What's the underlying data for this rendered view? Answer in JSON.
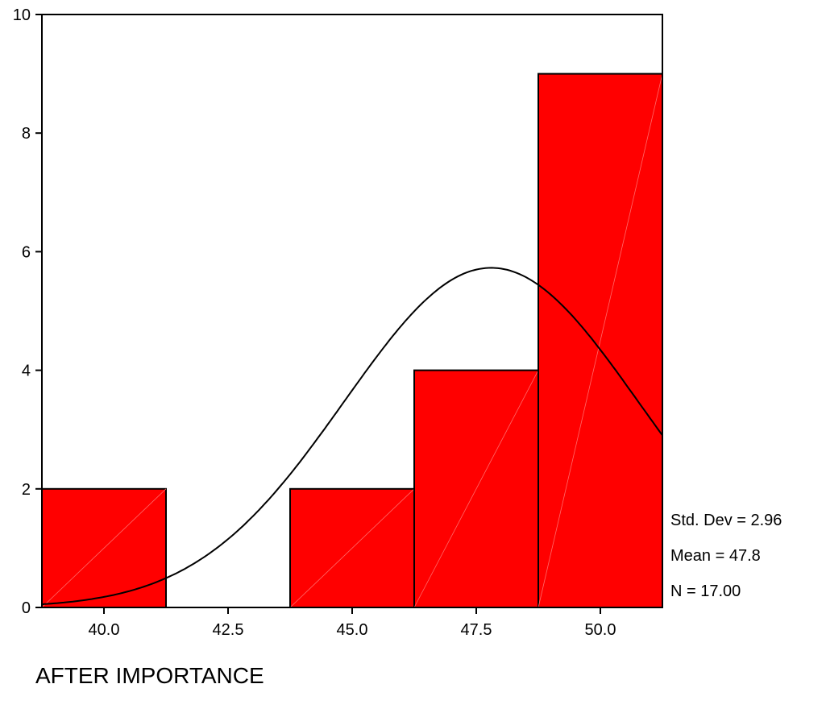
{
  "chart_data": {
    "type": "bar",
    "histogram": true,
    "xlabel": "AFTER IMPORTANCE",
    "ylabel": "",
    "bin_width": 2.5,
    "bins": [
      {
        "center": 40.0,
        "count": 2
      },
      {
        "center": 42.5,
        "count": 0
      },
      {
        "center": 45.0,
        "count": 2
      },
      {
        "center": 47.5,
        "count": 4
      },
      {
        "center": 50.0,
        "count": 9
      }
    ],
    "xlim": [
      38.75,
      51.25
    ],
    "ylim": [
      0,
      10
    ],
    "x_ticks": [
      "40.0",
      "42.5",
      "45.0",
      "47.5",
      "50.0"
    ],
    "y_ticks": [
      "0",
      "2",
      "4",
      "6",
      "8",
      "10"
    ],
    "normal_curve": {
      "mean": 47.8,
      "sd": 2.96,
      "n": 17
    },
    "bar_color": "#ff0000",
    "stats": {
      "std_dev": "Std. Dev = 2.96",
      "mean": "Mean = 47.8",
      "n": "N = 17.00"
    }
  }
}
